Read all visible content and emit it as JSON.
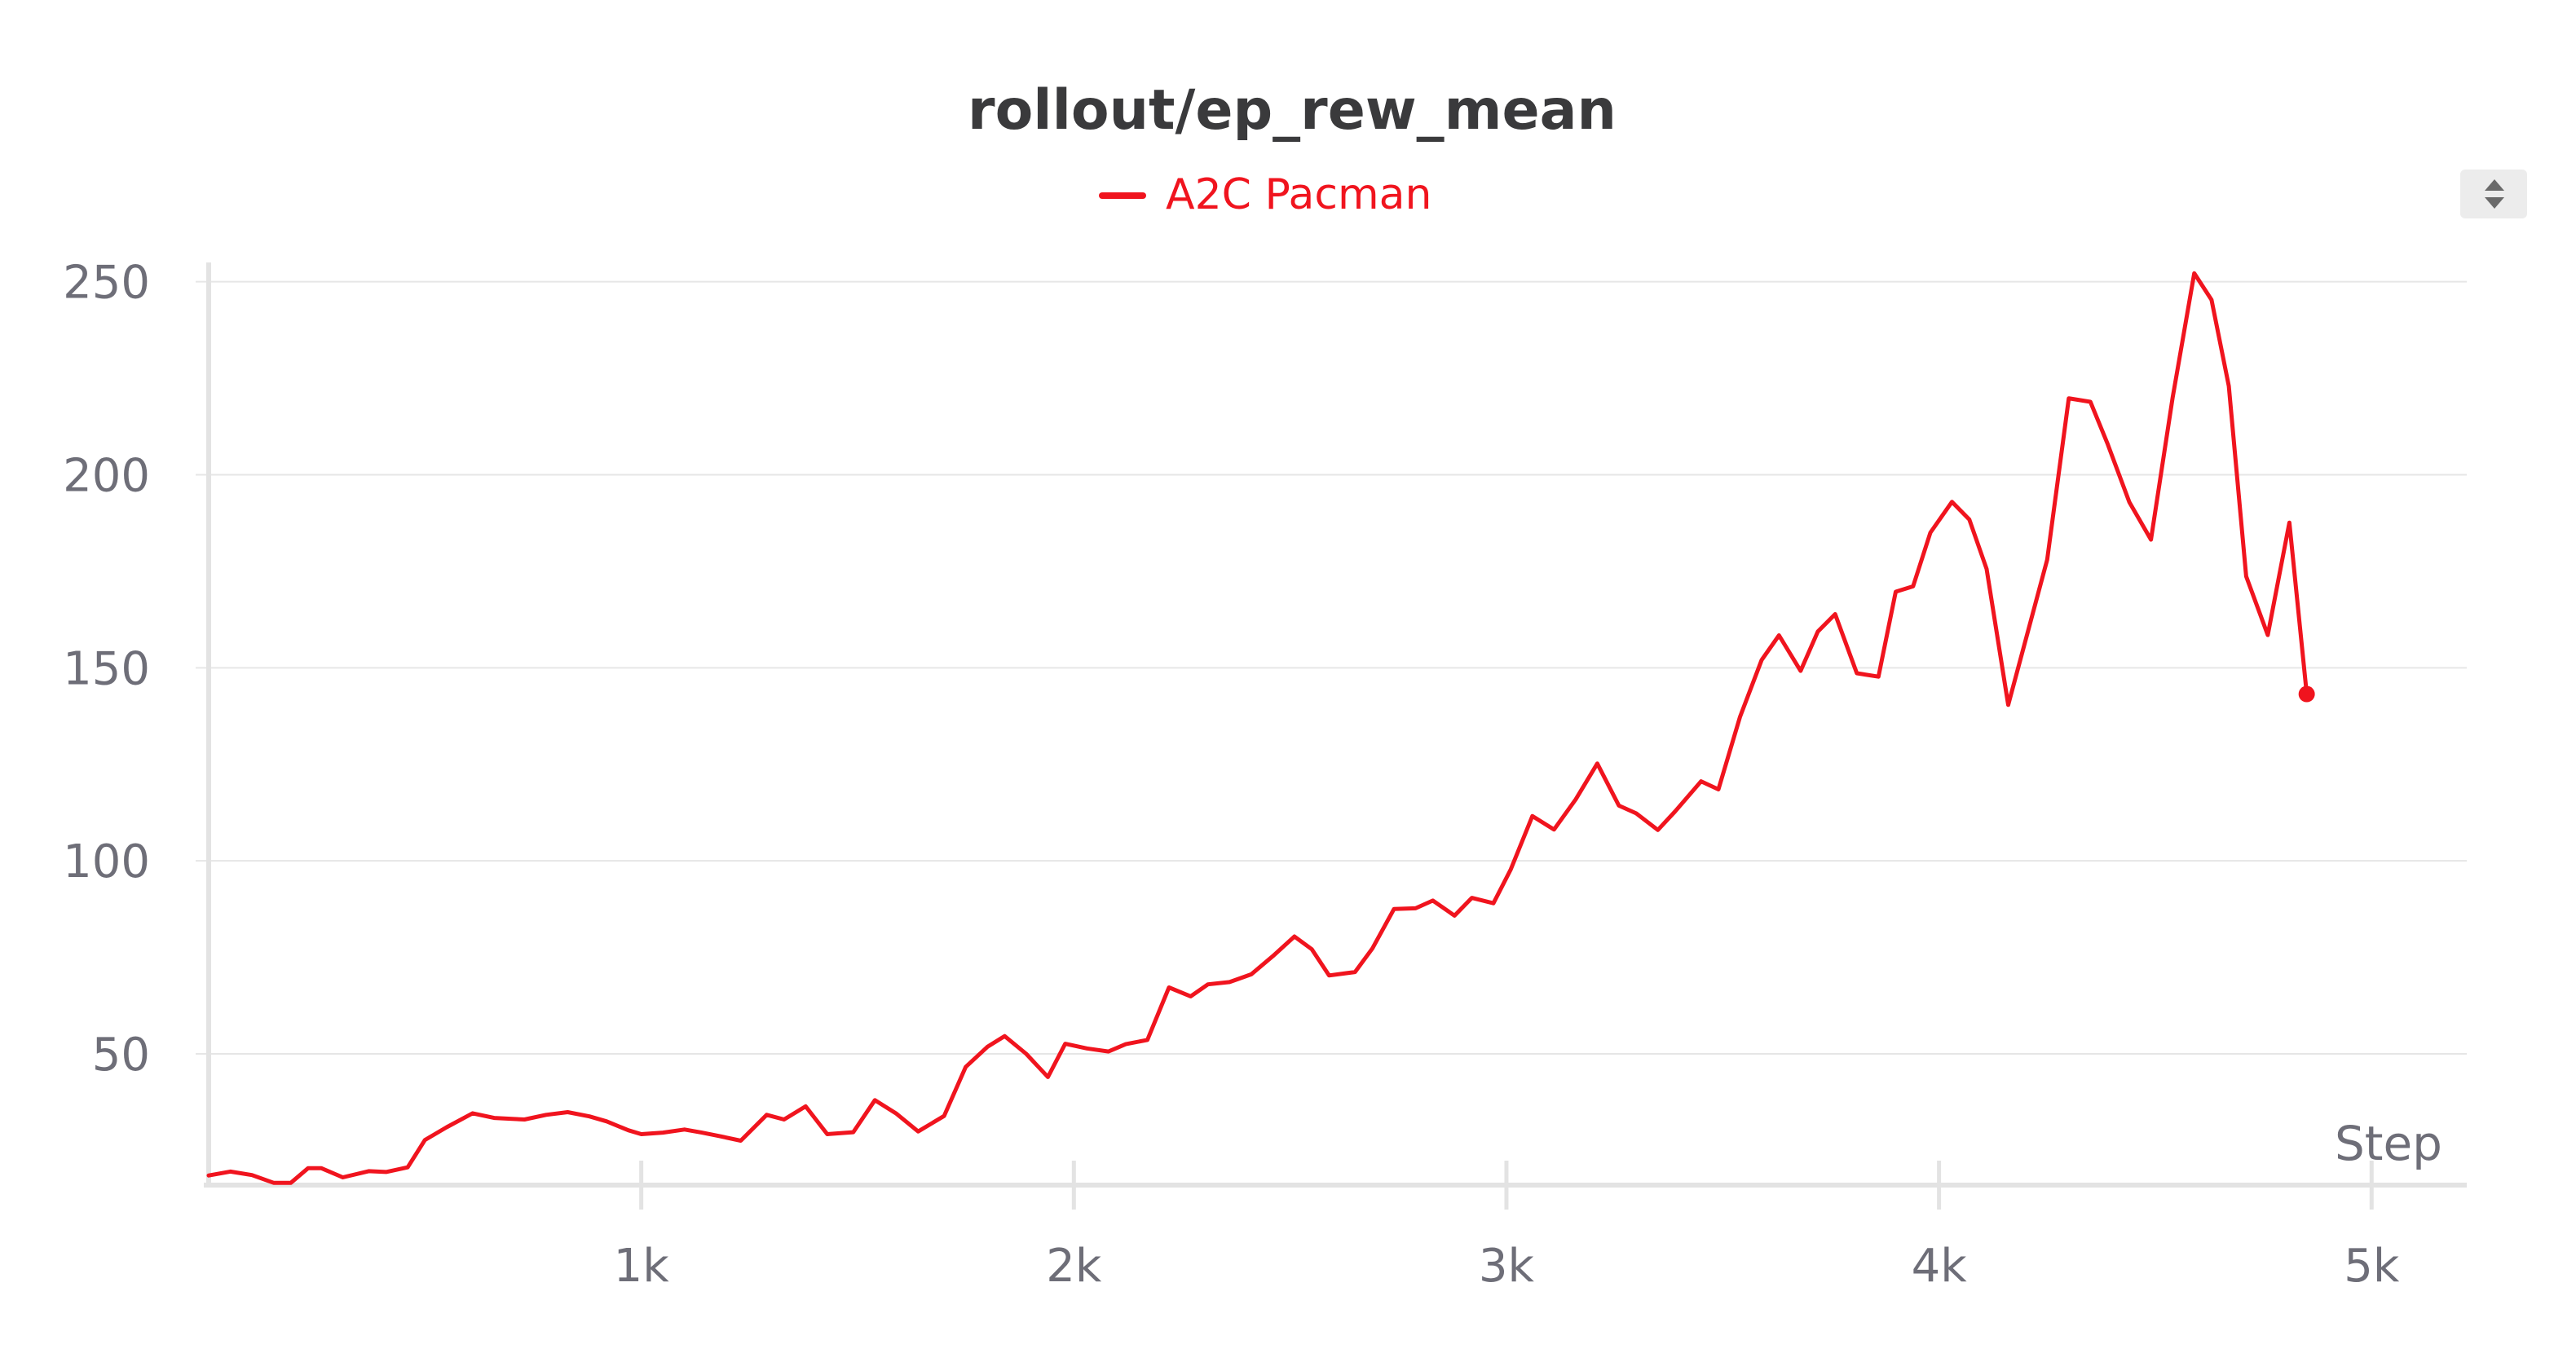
{
  "chart_data": {
    "type": "line",
    "title": "rollout/ep_rew_mean",
    "xlabel": "Step",
    "ylabel": "",
    "xlim": [
      0,
      5220
    ],
    "ylim": [
      16,
      255
    ],
    "x_ticks": [
      {
        "value": 1000,
        "label": "1k"
      },
      {
        "value": 2000,
        "label": "2k"
      },
      {
        "value": 3000,
        "label": "3k"
      },
      {
        "value": 4000,
        "label": "4k"
      },
      {
        "value": 5000,
        "label": "5k"
      }
    ],
    "y_ticks": [
      {
        "value": 50,
        "label": "50"
      },
      {
        "value": 100,
        "label": "100"
      },
      {
        "value": 150,
        "label": "150"
      },
      {
        "value": 200,
        "label": "200"
      },
      {
        "value": 250,
        "label": "250"
      }
    ],
    "grid": true,
    "legend": "top-center",
    "series": [
      {
        "name": "A2C Pacman",
        "color": "#f0141e",
        "points": [
          [
            0,
            18.5
          ],
          [
            50,
            19.5
          ],
          [
            100,
            18.6
          ],
          [
            150,
            16.6
          ],
          [
            190,
            16.6
          ],
          [
            230,
            20.4
          ],
          [
            260,
            20.4
          ],
          [
            310,
            18.0
          ],
          [
            370,
            19.6
          ],
          [
            410,
            19.4
          ],
          [
            460,
            20.6
          ],
          [
            500,
            27.7
          ],
          [
            550,
            31.0
          ],
          [
            610,
            34.6
          ],
          [
            660,
            33.4
          ],
          [
            730,
            33.0
          ],
          [
            780,
            34.2
          ],
          [
            830,
            34.9
          ],
          [
            880,
            33.8
          ],
          [
            920,
            32.5
          ],
          [
            970,
            30.2
          ],
          [
            1000,
            29.2
          ],
          [
            1050,
            29.6
          ],
          [
            1100,
            30.4
          ],
          [
            1140,
            29.6
          ],
          [
            1180,
            28.7
          ],
          [
            1230,
            27.5
          ],
          [
            1290,
            34.2
          ],
          [
            1330,
            33.0
          ],
          [
            1380,
            36.4
          ],
          [
            1430,
            29.2
          ],
          [
            1490,
            29.7
          ],
          [
            1540,
            38.0
          ],
          [
            1590,
            34.5
          ],
          [
            1640,
            29.9
          ],
          [
            1700,
            33.9
          ],
          [
            1750,
            46.6
          ],
          [
            1800,
            51.8
          ],
          [
            1840,
            54.6
          ],
          [
            1890,
            50.0
          ],
          [
            1940,
            44.0
          ],
          [
            1980,
            52.6
          ],
          [
            2030,
            51.4
          ],
          [
            2080,
            50.6
          ],
          [
            2120,
            52.5
          ],
          [
            2170,
            53.6
          ],
          [
            2220,
            67.2
          ],
          [
            2270,
            64.9
          ],
          [
            2310,
            68.0
          ],
          [
            2360,
            68.6
          ],
          [
            2410,
            70.6
          ],
          [
            2460,
            75.3
          ],
          [
            2510,
            80.4
          ],
          [
            2550,
            77.1
          ],
          [
            2590,
            70.3
          ],
          [
            2650,
            71.2
          ],
          [
            2690,
            77.3
          ],
          [
            2740,
            87.5
          ],
          [
            2790,
            87.7
          ],
          [
            2830,
            89.7
          ],
          [
            2880,
            85.8
          ],
          [
            2920,
            90.4
          ],
          [
            2970,
            89.0
          ],
          [
            3010,
            97.8
          ],
          [
            3060,
            111.6
          ],
          [
            3110,
            108.1
          ],
          [
            3160,
            115.9
          ],
          [
            3210,
            125.2
          ],
          [
            3260,
            114.3
          ],
          [
            3300,
            112.3
          ],
          [
            3350,
            108.0
          ],
          [
            3390,
            112.8
          ],
          [
            3450,
            120.6
          ],
          [
            3490,
            118.5
          ],
          [
            3540,
            137.3
          ],
          [
            3590,
            152.0
          ],
          [
            3630,
            158.4
          ],
          [
            3680,
            149.2
          ],
          [
            3720,
            159.4
          ],
          [
            3760,
            163.9
          ],
          [
            3810,
            148.6
          ],
          [
            3860,
            147.7
          ],
          [
            3900,
            169.7
          ],
          [
            3940,
            171.1
          ],
          [
            3980,
            185.0
          ],
          [
            4030,
            193.0
          ],
          [
            4070,
            188.4
          ],
          [
            4110,
            175.6
          ],
          [
            4160,
            140.4
          ],
          [
            4250,
            178.0
          ],
          [
            4300,
            219.8
          ],
          [
            4350,
            218.9
          ],
          [
            4390,
            207.9
          ],
          [
            4440,
            192.9
          ],
          [
            4490,
            183.2
          ],
          [
            4540,
            220.0
          ],
          [
            4590,
            252.2
          ],
          [
            4630,
            245.3
          ],
          [
            4670,
            223.0
          ],
          [
            4710,
            173.7
          ],
          [
            4760,
            158.5
          ],
          [
            4810,
            187.6
          ],
          [
            4850,
            143.2
          ]
        ]
      }
    ]
  }
}
